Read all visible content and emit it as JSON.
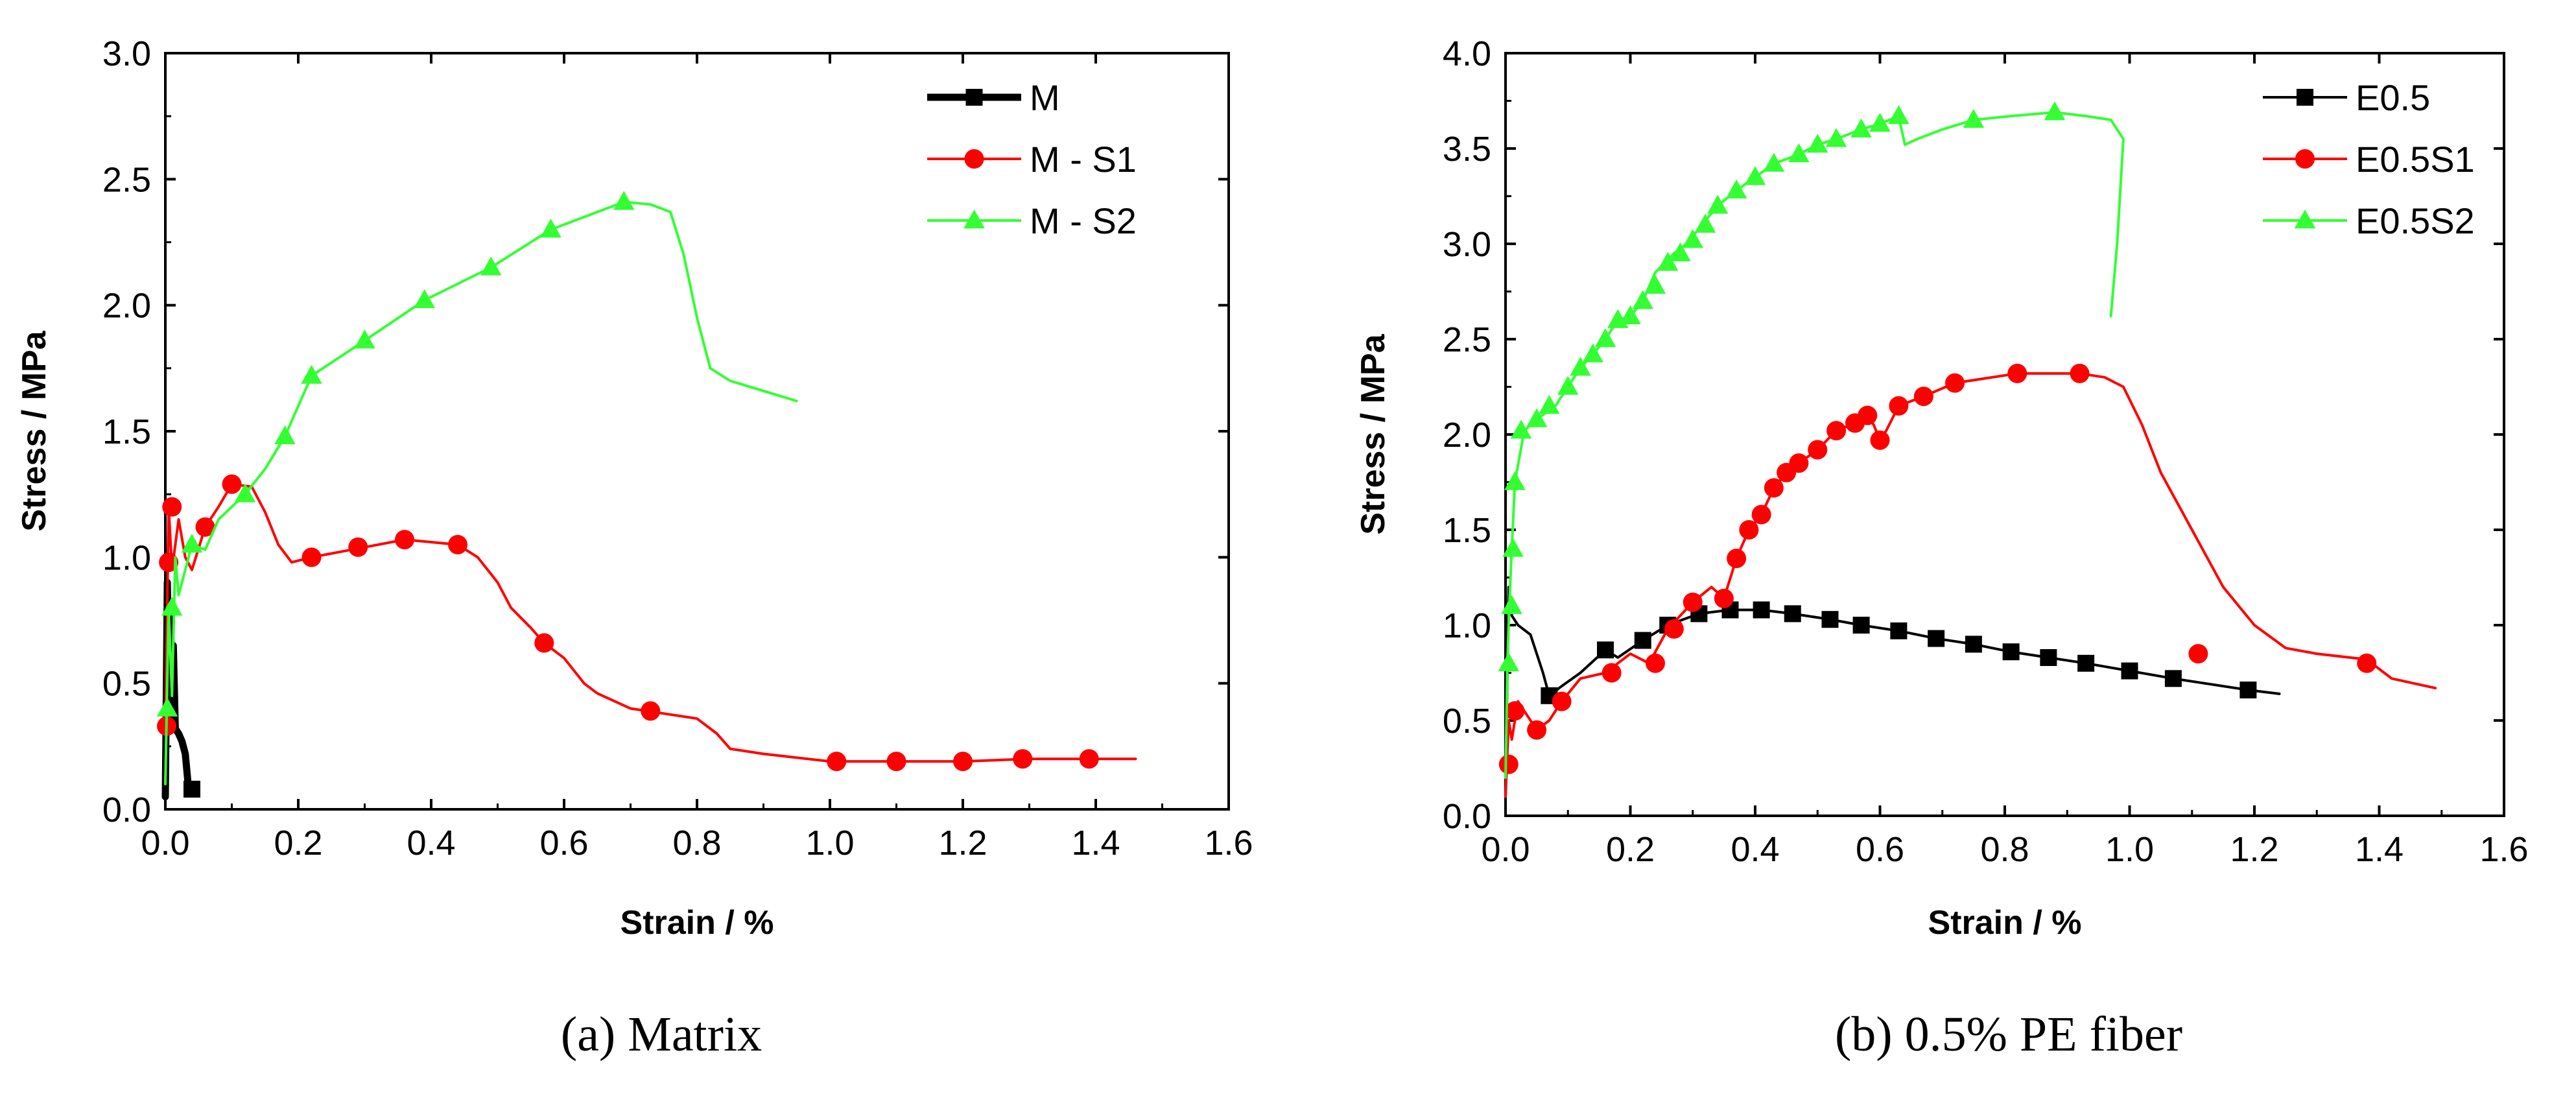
{
  "chart_data": [
    {
      "type": "line",
      "caption": "(a) Matrix",
      "xlabel": "Strain / %",
      "ylabel": "Stress / MPa",
      "xlim": [
        0,
        1.6
      ],
      "ylim": [
        0,
        3.0
      ],
      "xticks": [
        "0.0",
        "0.2",
        "0.4",
        "0.6",
        "0.8",
        "1.0",
        "1.2",
        "1.4",
        "1.6"
      ],
      "yticks": [
        "0.0",
        "0.5",
        "1.0",
        "1.5",
        "2.0",
        "2.5",
        "3.0"
      ],
      "legend_position": "top-right",
      "series": [
        {
          "name": "M",
          "color": "#000000",
          "marker": "square",
          "line_width": "thick",
          "x": [
            0.0,
            0.003,
            0.006,
            0.008,
            0.01,
            0.012,
            0.015,
            0.02,
            0.025,
            0.03,
            0.035,
            0.04
          ],
          "y": [
            0.05,
            0.9,
            0.4,
            0.8,
            0.35,
            0.65,
            0.32,
            0.3,
            0.27,
            0.22,
            0.08,
            0.08
          ],
          "marker_x": [
            0.04
          ],
          "marker_y": [
            0.08
          ]
        },
        {
          "name": "M - S1",
          "color": "#ff0000",
          "marker": "circle",
          "line_width": "thin",
          "x": [
            0.0,
            0.005,
            0.01,
            0.02,
            0.03,
            0.04,
            0.06,
            0.08,
            0.1,
            0.13,
            0.15,
            0.17,
            0.19,
            0.22,
            0.3,
            0.36,
            0.44,
            0.47,
            0.5,
            0.52,
            0.55,
            0.57,
            0.6,
            0.63,
            0.65,
            0.7,
            0.75,
            0.8,
            0.83,
            0.85,
            0.9,
            1.0,
            1.1,
            1.2,
            1.3,
            1.4,
            1.46
          ],
          "y": [
            0.3,
            1.2,
            0.95,
            1.15,
            1.0,
            0.95,
            1.12,
            1.2,
            1.29,
            1.28,
            1.18,
            1.05,
            0.98,
            1.0,
            1.04,
            1.07,
            1.05,
            1.0,
            0.9,
            0.8,
            0.72,
            0.66,
            0.6,
            0.5,
            0.46,
            0.4,
            0.38,
            0.36,
            0.3,
            0.24,
            0.22,
            0.19,
            0.19,
            0.19,
            0.2,
            0.2,
            0.2
          ],
          "marker_x": [
            0.002,
            0.005,
            0.01,
            0.06,
            0.1,
            0.22,
            0.29,
            0.36,
            0.44,
            0.57,
            0.73,
            1.01,
            1.1,
            1.2,
            1.29,
            1.39
          ],
          "marker_y": [
            0.33,
            0.98,
            1.2,
            1.12,
            1.29,
            1.0,
            1.04,
            1.07,
            1.05,
            0.66,
            0.39,
            0.19,
            0.19,
            0.19,
            0.2,
            0.2
          ]
        },
        {
          "name": "M - S2",
          "color": "#33ff33",
          "marker": "triangle",
          "line_width": "thin",
          "x": [
            0.0,
            0.005,
            0.01,
            0.015,
            0.02,
            0.04,
            0.06,
            0.08,
            0.1,
            0.12,
            0.15,
            0.18,
            0.22,
            0.3,
            0.39,
            0.49,
            0.58,
            0.69,
            0.73,
            0.76,
            0.78,
            0.8,
            0.82,
            0.85,
            0.9,
            0.95
          ],
          "y": [
            0.1,
            0.8,
            0.45,
            1.0,
            0.85,
            1.05,
            1.03,
            1.15,
            1.2,
            1.25,
            1.35,
            1.48,
            1.72,
            1.86,
            2.02,
            2.15,
            2.3,
            2.41,
            2.4,
            2.37,
            2.2,
            1.95,
            1.75,
            1.7,
            1.66,
            1.62
          ],
          "marker_x": [
            0.003,
            0.01,
            0.04,
            0.12,
            0.18,
            0.22,
            0.3,
            0.39,
            0.49,
            0.58,
            0.69
          ],
          "marker_y": [
            0.4,
            0.8,
            1.05,
            1.25,
            1.48,
            1.72,
            1.86,
            2.02,
            2.15,
            2.3,
            2.41
          ]
        }
      ]
    },
    {
      "type": "line",
      "caption": "(b) 0.5% PE fiber",
      "xlabel": "Strain / %",
      "ylabel": "Stress / MPa",
      "xlim": [
        0,
        1.6
      ],
      "ylim": [
        0,
        4.0
      ],
      "xticks": [
        "0.0",
        "0.2",
        "0.4",
        "0.6",
        "0.8",
        "1.0",
        "1.2",
        "1.4",
        "1.6"
      ],
      "yticks": [
        "0.0",
        "0.5",
        "1.0",
        "1.5",
        "2.0",
        "2.5",
        "3.0",
        "3.5",
        "4.0"
      ],
      "legend_position": "top-right",
      "series": [
        {
          "name": "E0.5",
          "color": "#000000",
          "marker": "square",
          "line_width": "thin",
          "x": [
            0.0,
            0.005,
            0.01,
            0.02,
            0.04,
            0.06,
            0.07,
            0.09,
            0.12,
            0.16,
            0.18,
            0.22,
            0.26,
            0.31,
            0.36,
            0.41,
            0.46,
            0.52,
            0.57,
            0.63,
            0.69,
            0.75,
            0.81,
            0.87,
            0.93,
            1.0,
            1.07,
            1.19,
            1.24
          ],
          "y": [
            0.1,
            1.2,
            1.05,
            1.0,
            0.95,
            0.75,
            0.63,
            0.68,
            0.75,
            0.87,
            0.83,
            0.92,
            1.0,
            1.06,
            1.08,
            1.08,
            1.06,
            1.03,
            1.0,
            0.97,
            0.93,
            0.9,
            0.86,
            0.83,
            0.8,
            0.76,
            0.72,
            0.66,
            0.64
          ],
          "marker_x": [
            0.07,
            0.16,
            0.22,
            0.26,
            0.31,
            0.36,
            0.41,
            0.46,
            0.52,
            0.57,
            0.63,
            0.69,
            0.75,
            0.81,
            0.87,
            0.93,
            1.0,
            1.07,
            1.19
          ],
          "marker_y": [
            0.63,
            0.87,
            0.92,
            1.0,
            1.06,
            1.08,
            1.08,
            1.06,
            1.03,
            1.0,
            0.97,
            0.93,
            0.9,
            0.86,
            0.83,
            0.8,
            0.76,
            0.72,
            0.66
          ]
        },
        {
          "name": "E0.5S1",
          "color": "#ff0000",
          "marker": "circle",
          "line_width": "thin",
          "x": [
            0.0,
            0.005,
            0.01,
            0.02,
            0.03,
            0.05,
            0.07,
            0.09,
            0.12,
            0.16,
            0.2,
            0.23,
            0.26,
            0.3,
            0.33,
            0.35,
            0.37,
            0.39,
            0.41,
            0.43,
            0.45,
            0.47,
            0.5,
            0.53,
            0.56,
            0.58,
            0.59,
            0.6,
            0.61,
            0.63,
            0.67,
            0.72,
            0.82,
            0.92,
            0.96,
            0.99,
            1.02,
            1.05,
            1.1,
            1.15,
            1.2,
            1.25,
            1.3,
            1.38,
            1.42,
            1.49
          ],
          "y": [
            0.1,
            0.5,
            0.4,
            0.6,
            0.55,
            0.45,
            0.5,
            0.6,
            0.72,
            0.75,
            0.85,
            0.8,
            0.98,
            1.12,
            1.2,
            1.14,
            1.35,
            1.5,
            1.58,
            1.72,
            1.8,
            1.85,
            1.92,
            2.02,
            2.06,
            2.1,
            2.05,
            1.97,
            2.02,
            2.15,
            2.2,
            2.27,
            2.32,
            2.32,
            2.3,
            2.25,
            2.05,
            1.8,
            1.5,
            1.2,
            1.0,
            0.88,
            0.85,
            0.82,
            0.72,
            0.67
          ],
          "marker_x": [
            0.005,
            0.015,
            0.05,
            0.09,
            0.17,
            0.24,
            0.27,
            0.3,
            0.35,
            0.37,
            0.39,
            0.41,
            0.43,
            0.45,
            0.47,
            0.5,
            0.53,
            0.56,
            0.58,
            0.6,
            0.63,
            0.67,
            0.72,
            0.82,
            0.92,
            1.11,
            1.38
          ],
          "marker_y": [
            0.27,
            0.55,
            0.45,
            0.6,
            0.75,
            0.8,
            0.98,
            1.12,
            1.14,
            1.35,
            1.5,
            1.58,
            1.72,
            1.8,
            1.85,
            1.92,
            2.02,
            2.06,
            2.1,
            1.97,
            2.15,
            2.2,
            2.27,
            2.32,
            2.32,
            0.85,
            0.8
          ]
        },
        {
          "name": "E0.5S2",
          "color": "#33ff33",
          "marker": "triangle",
          "line_width": "thin",
          "x": [
            0.0,
            0.003,
            0.006,
            0.01,
            0.015,
            0.03,
            0.05,
            0.08,
            0.1,
            0.12,
            0.14,
            0.16,
            0.18,
            0.2,
            0.22,
            0.24,
            0.27,
            0.29,
            0.31,
            0.34,
            0.37,
            0.4,
            0.43,
            0.47,
            0.5,
            0.53,
            0.57,
            0.6,
            0.63,
            0.64,
            0.66,
            0.7,
            0.75,
            0.81,
            0.88,
            0.93,
            0.97,
            0.99,
            0.98,
            0.97
          ],
          "y": [
            0.2,
            0.8,
            1.1,
            1.4,
            1.75,
            2.02,
            2.08,
            2.15,
            2.25,
            2.35,
            2.42,
            2.5,
            2.6,
            2.62,
            2.7,
            2.85,
            2.95,
            3.0,
            3.08,
            3.2,
            3.28,
            3.35,
            3.42,
            3.47,
            3.52,
            3.55,
            3.6,
            3.63,
            3.67,
            3.52,
            3.55,
            3.6,
            3.65,
            3.67,
            3.69,
            3.67,
            3.65,
            3.55,
            3.0,
            2.62
          ],
          "marker_x": [
            0.005,
            0.01,
            0.012,
            0.015,
            0.025,
            0.05,
            0.07,
            0.1,
            0.12,
            0.14,
            0.16,
            0.18,
            0.2,
            0.22,
            0.24,
            0.26,
            0.28,
            0.3,
            0.32,
            0.34,
            0.37,
            0.4,
            0.43,
            0.47,
            0.5,
            0.53,
            0.57,
            0.6,
            0.63,
            0.75,
            0.88
          ],
          "marker_y": [
            0.8,
            1.1,
            1.4,
            1.75,
            2.02,
            2.08,
            2.15,
            2.25,
            2.35,
            2.42,
            2.5,
            2.6,
            2.62,
            2.7,
            2.78,
            2.9,
            2.95,
            3.02,
            3.1,
            3.2,
            3.28,
            3.35,
            3.42,
            3.47,
            3.52,
            3.55,
            3.6,
            3.63,
            3.67,
            3.65,
            3.69
          ]
        }
      ]
    }
  ]
}
